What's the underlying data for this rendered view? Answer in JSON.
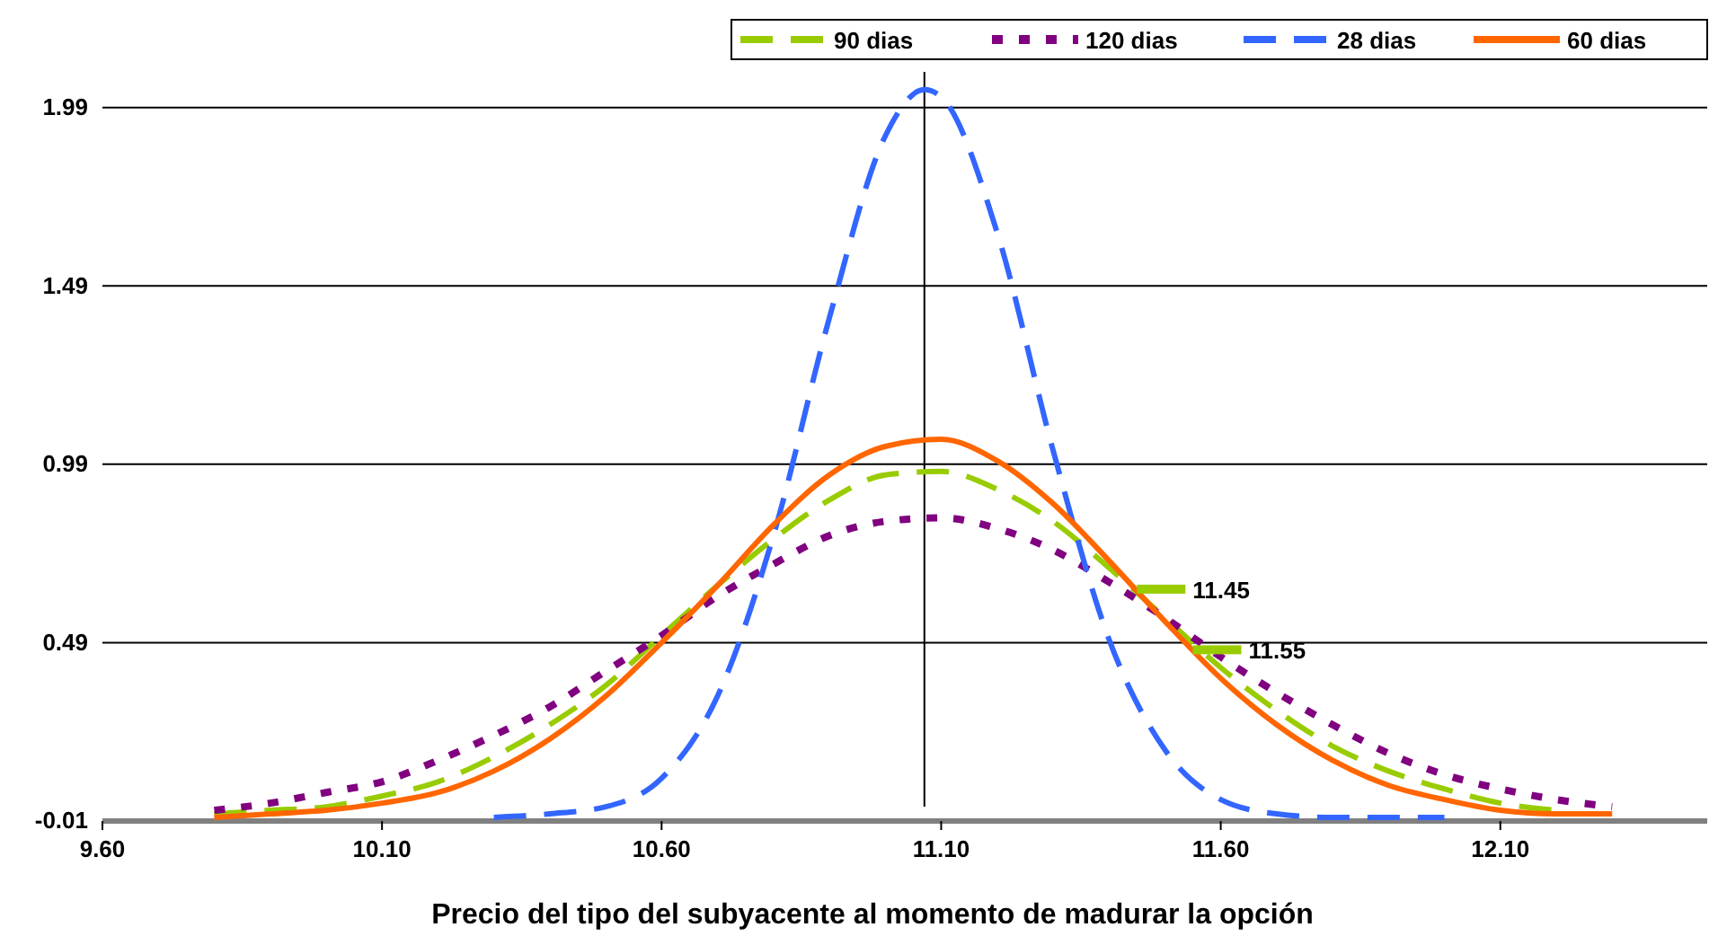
{
  "chart_data": {
    "type": "line",
    "xlabel": "Precio del tipo del subyacente al momento de madurar la opción",
    "xlim": [
      9.6,
      12.47
    ],
    "xticks": [
      {
        "value": 9.6,
        "label": "9.60"
      },
      {
        "value": 10.1,
        "label": "10.10"
      },
      {
        "value": 10.6,
        "label": "10.60"
      },
      {
        "value": 11.1,
        "label": "11.10"
      },
      {
        "value": 11.6,
        "label": "11.60"
      },
      {
        "value": 12.1,
        "label": "12.10"
      }
    ],
    "ylim": [
      -0.01,
      2.09
    ],
    "yticks": [
      -0.01,
      0.49,
      0.99,
      1.49,
      1.99
    ],
    "grid": "y",
    "legend": "top right",
    "series": [
      {
        "name": "90 dias",
        "color": "#99cc00",
        "line_style": "dashed",
        "x": [
          9.8,
          9.9,
          10.0,
          10.1,
          10.2,
          10.3,
          10.4,
          10.5,
          10.6,
          10.7,
          10.8,
          10.9,
          11.0,
          11.1,
          11.2,
          11.3,
          11.4,
          11.5,
          11.6,
          11.7,
          11.8,
          11.9,
          12.0,
          12.1,
          12.2
        ],
        "values": [
          0.01,
          0.02,
          0.03,
          0.06,
          0.1,
          0.17,
          0.26,
          0.37,
          0.51,
          0.65,
          0.78,
          0.89,
          0.96,
          0.97,
          0.92,
          0.83,
          0.7,
          0.56,
          0.42,
          0.3,
          0.2,
          0.13,
          0.08,
          0.04,
          0.02
        ]
      },
      {
        "name": "120 dias",
        "color": "#800080",
        "line_style": "dotted",
        "x": [
          9.8,
          9.9,
          10.0,
          10.1,
          10.2,
          10.3,
          10.4,
          10.5,
          10.6,
          10.7,
          10.8,
          10.9,
          11.0,
          11.1,
          11.2,
          11.3,
          11.4,
          11.5,
          11.6,
          11.7,
          11.8,
          11.9,
          12.0,
          12.1,
          12.2,
          12.3
        ],
        "values": [
          0.02,
          0.04,
          0.07,
          0.1,
          0.16,
          0.23,
          0.31,
          0.41,
          0.51,
          0.62,
          0.71,
          0.79,
          0.83,
          0.84,
          0.81,
          0.75,
          0.66,
          0.56,
          0.45,
          0.35,
          0.26,
          0.18,
          0.12,
          0.08,
          0.05,
          0.03
        ]
      },
      {
        "name": "28 dias",
        "color": "#3366ff",
        "line_style": "dashed",
        "x": [
          10.3,
          10.4,
          10.5,
          10.6,
          10.7,
          10.8,
          10.9,
          11.0,
          11.07,
          11.1,
          11.2,
          11.3,
          11.4,
          11.5,
          11.6,
          11.7,
          11.8,
          11.9,
          12.0
        ],
        "values": [
          0.0,
          0.01,
          0.03,
          0.11,
          0.34,
          0.79,
          1.4,
          1.91,
          2.04,
          2.02,
          1.64,
          1.03,
          0.5,
          0.19,
          0.05,
          0.01,
          0.0,
          0.0,
          0.0
        ]
      },
      {
        "name": "60 dias",
        "color": "#ff6600",
        "line_style": "solid",
        "x": [
          9.8,
          9.9,
          10.0,
          10.1,
          10.2,
          10.3,
          10.4,
          10.5,
          10.6,
          10.7,
          10.8,
          10.9,
          11.0,
          11.1,
          11.2,
          11.3,
          11.4,
          11.5,
          11.6,
          11.7,
          11.8,
          11.9,
          12.0,
          12.1,
          12.2,
          12.3
        ],
        "values": [
          0.0,
          0.01,
          0.02,
          0.04,
          0.07,
          0.13,
          0.22,
          0.34,
          0.49,
          0.65,
          0.82,
          0.96,
          1.04,
          1.06,
          1.0,
          0.88,
          0.72,
          0.55,
          0.39,
          0.26,
          0.16,
          0.09,
          0.05,
          0.02,
          0.01,
          0.01
        ]
      }
    ],
    "ref_lines": [
      {
        "axis": "x",
        "value": 11.07,
        "color": "#000000"
      }
    ],
    "annotations": [
      {
        "text": "11.45",
        "x": 11.45,
        "y": 0.64
      },
      {
        "text": "11.55",
        "x": 11.55,
        "y": 0.47
      }
    ]
  }
}
